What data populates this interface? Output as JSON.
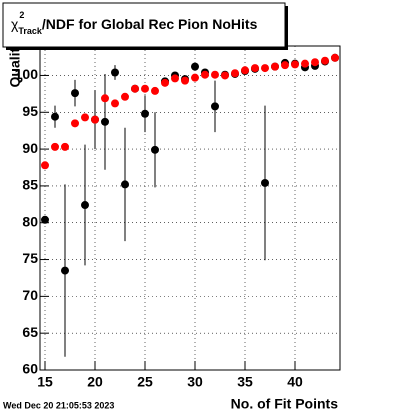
{
  "chart_data": {
    "type": "scatter",
    "title_symbol": "χ",
    "title_sup": "2",
    "title_sub": "Track",
    "title_rest": "/NDF for Global Rec Pion NoHits",
    "x_label": "No. of Fit Points",
    "y_label": "Quality",
    "timestamp": "Wed Dec 20 21:05:53 2023",
    "x": [
      15,
      16,
      17,
      18,
      19,
      20,
      21,
      22,
      23,
      24,
      25,
      26,
      27,
      28,
      29,
      30,
      31,
      32,
      33,
      34,
      35,
      36,
      37,
      38,
      39,
      40,
      41,
      42,
      43,
      44
    ],
    "series": [
      {
        "color": "#000000",
        "values": [
          80.4,
          94.4,
          73.5,
          97.6,
          82.4,
          94,
          93.7,
          100.4,
          85.2,
          98.2,
          94.8,
          89.9,
          99.2,
          100,
          99.5,
          101.2,
          100.4,
          95.8,
          100.1,
          100.2,
          100.6,
          100.9,
          85.4,
          101.2,
          101.7,
          101.6,
          101.1,
          101.3,
          101.9,
          102.4
        ],
        "errors": [
          0.5,
          1.5,
          11.7,
          1.8,
          8.2,
          4,
          6.5,
          1,
          7.7,
          0.5,
          2.5,
          5.1,
          0.3,
          0.3,
          0.3,
          0.3,
          0.3,
          3.5,
          0.3,
          0.3,
          0.3,
          0.3,
          10.5,
          0.3,
          0.3,
          0.3,
          0.3,
          0.3,
          0.3,
          0.3
        ]
      },
      {
        "color": "#ff0000",
        "values": [
          87.8,
          90.3,
          90.3,
          93.5,
          94.3,
          94,
          96.9,
          96.2,
          97.1,
          98.2,
          98.2,
          97.9,
          99,
          99.6,
          99.3,
          99.7,
          100.1,
          100.1,
          100,
          100.3,
          100.7,
          101,
          101,
          101.2,
          101.4,
          101.5,
          101.6,
          101.8,
          102,
          102.4
        ]
      }
    ],
    "xlim": [
      14.5,
      44.5
    ],
    "ylim": [
      60,
      104
    ],
    "xticks": [
      15,
      20,
      25,
      30,
      35,
      40
    ],
    "yticks": [
      60,
      65,
      70,
      75,
      80,
      85,
      90,
      95,
      100
    ],
    "grid": true
  }
}
